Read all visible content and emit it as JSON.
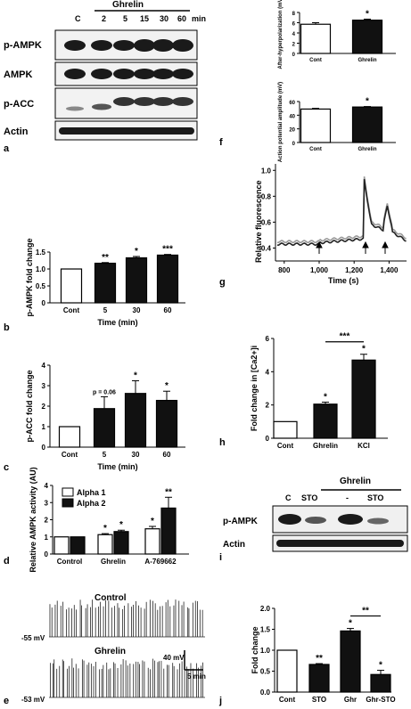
{
  "panel_a": {
    "header": "Ghrelin",
    "lanes": [
      "C",
      "2",
      "5",
      "15",
      "30",
      "60"
    ],
    "unit": "min",
    "rows": [
      "p-AMPK",
      "AMPK",
      "p-ACC",
      "Actin"
    ],
    "letter": "a"
  },
  "panel_e": {
    "letter": "e",
    "control_label": "Control",
    "ghrelin_label": "Ghrelin",
    "control_vm": "-55 mV",
    "ghrelin_vm": "-53 mV",
    "scale_mv": "40 mV",
    "scale_time": "5 min"
  },
  "panel_g": {
    "letter": "g",
    "ylabel": "Relative fluorescence",
    "xlabel": "Time (s)",
    "yticks": [
      "0.4",
      "0.6",
      "0.8",
      "1.0"
    ],
    "xticks": [
      "800",
      "1,000",
      "1,200",
      "1,400"
    ]
  },
  "panel_i": {
    "letter": "i",
    "header": "Ghrelin",
    "lanes": [
      "C",
      "STO",
      "-",
      "STO"
    ],
    "rows": [
      "p-AMPK",
      "Actin"
    ]
  },
  "chart_data": [
    {
      "id": "b",
      "type": "bar",
      "categories": [
        "Cont",
        "5",
        "30",
        "60"
      ],
      "values": [
        1.0,
        1.17,
        1.33,
        1.41
      ],
      "errors": [
        0,
        0.02,
        0.04,
        0.02
      ],
      "sig": [
        "",
        "**",
        "*",
        "***"
      ],
      "ylabel": "p-AMPK fold change",
      "xlabel": "Time (min)",
      "ylim": [
        0,
        1.5
      ],
      "yticks": [
        "0",
        "0.5",
        "1.0",
        "1.5"
      ]
    },
    {
      "id": "c",
      "type": "bar",
      "categories": [
        "Cont",
        "5",
        "30",
        "60"
      ],
      "values": [
        1.0,
        1.88,
        2.62,
        2.28
      ],
      "errors": [
        0,
        0.58,
        0.62,
        0.45
      ],
      "sig": [
        "",
        "p = 0.06",
        "*",
        "*"
      ],
      "ylabel": "p-ACC fold change",
      "xlabel": "Time (min)",
      "ylim": [
        0,
        4
      ],
      "yticks": [
        "0",
        "1",
        "2",
        "3",
        "4"
      ]
    },
    {
      "id": "d",
      "type": "bar",
      "categories": [
        "Control",
        "Ghrelin",
        "A-769662"
      ],
      "series": [
        {
          "name": "Alpha 1",
          "values": [
            1.0,
            1.13,
            1.47
          ],
          "errors": [
            0,
            0.06,
            0.14
          ],
          "sig": [
            "",
            "*",
            "*"
          ]
        },
        {
          "name": "Alpha 2",
          "values": [
            1.0,
            1.31,
            2.68
          ],
          "errors": [
            0,
            0.08,
            0.63
          ],
          "sig": [
            "",
            "*",
            "**"
          ]
        }
      ],
      "ylabel": "Relative AMPK activity (AU)",
      "ylim": [
        0,
        4
      ],
      "yticks": [
        "0",
        "1",
        "2",
        "3",
        "4"
      ]
    },
    {
      "id": "f1",
      "type": "bar",
      "categories": [
        "Cont",
        "Ghrelin"
      ],
      "values": [
        5.7,
        6.5
      ],
      "errors": [
        0.3,
        0.2
      ],
      "sig": [
        "",
        "*"
      ],
      "ylabel": "After-hyperpolarization (mV)",
      "ylim": [
        0,
        8
      ],
      "yticks": [
        "0",
        "2",
        "4",
        "6",
        "8"
      ]
    },
    {
      "id": "f2",
      "type": "bar",
      "categories": [
        "Cont",
        "Ghrelin"
      ],
      "values": [
        49,
        52
      ],
      "errors": [
        1,
        0.7
      ],
      "sig": [
        "",
        "*"
      ],
      "ylabel": "Action potential amplitude (mV)",
      "ylim": [
        0,
        60
      ],
      "yticks": [
        "0",
        "20",
        "40",
        "60"
      ]
    },
    {
      "id": "h",
      "type": "bar",
      "categories": [
        "Cont",
        "Ghrelin",
        "KCl"
      ],
      "values": [
        1.0,
        2.05,
        4.7
      ],
      "errors": [
        0,
        0.12,
        0.35
      ],
      "sig": [
        "",
        "*",
        "*"
      ],
      "bracket": "***",
      "ylabel": "Fold change in [Ca2+]i",
      "ylim": [
        0,
        6
      ],
      "yticks": [
        "0",
        "2",
        "4",
        "6"
      ]
    },
    {
      "id": "j",
      "type": "bar",
      "categories": [
        "Cont",
        "STO",
        "Ghr",
        "Ghr-STO"
      ],
      "values": [
        1.0,
        0.66,
        1.46,
        0.42
      ],
      "errors": [
        0,
        0.02,
        0.06,
        0.1
      ],
      "sig": [
        "",
        "**",
        "*",
        "*"
      ],
      "bracket": "**",
      "ylabel": "Fold change",
      "ylim": [
        0,
        2.0
      ],
      "yticks": [
        "0.0",
        "0.5",
        "1.0",
        "1.5",
        "2.0"
      ]
    }
  ]
}
